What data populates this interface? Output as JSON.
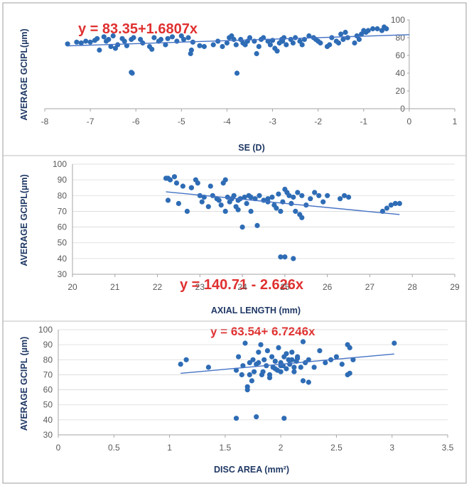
{
  "colors": {
    "points": "#2e6cb5",
    "trendline": "#4472c4",
    "equation": "#e03030",
    "axis_title": "#1f3864",
    "ticks": "#595959"
  },
  "chart_data": [
    {
      "type": "scatter",
      "xlabel": "SE (D)",
      "ylabel": "AVERAGE GCIPL(µm)",
      "equation": "y = 83.35+1.6807x",
      "trendline": {
        "intercept": 83.35,
        "slope": 1.6807,
        "x_range": [
          -7.5,
          0
        ]
      },
      "xlim": [
        -8,
        1
      ],
      "ylim": [
        0,
        100
      ],
      "xticks": [
        -8,
        -7,
        -6,
        -5,
        -4,
        -3,
        -2,
        -1,
        0,
        1
      ],
      "yticks": [
        0,
        20,
        40,
        60,
        80,
        100
      ],
      "y_axis_position": "right at x = 0",
      "x": [
        -7.5,
        -7.3,
        -7.2,
        -7.1,
        -7.0,
        -6.9,
        -6.85,
        -6.8,
        -6.7,
        -6.65,
        -6.6,
        -6.55,
        -6.5,
        -6.45,
        -6.4,
        -6.3,
        -6.25,
        -6.2,
        -6.1,
        -6.05,
        -6.1,
        -6.08,
        -5.9,
        -5.85,
        -5.7,
        -5.65,
        -5.6,
        -5.5,
        -5.45,
        -5.35,
        -5.3,
        -5.2,
        -5.1,
        -5.0,
        -4.95,
        -4.85,
        -4.8,
        -4.78,
        -4.75,
        -4.6,
        -4.5,
        -4.3,
        -4.2,
        -4.1,
        -4.0,
        -3.95,
        -3.9,
        -3.85,
        -3.8,
        -3.78,
        -3.7,
        -3.65,
        -3.6,
        -3.55,
        -3.5,
        -3.4,
        -3.35,
        -3.3,
        -3.25,
        -3.2,
        -3.1,
        -3.05,
        -3.0,
        -2.95,
        -2.9,
        -2.85,
        -2.8,
        -2.78,
        -2.75,
        -2.7,
        -2.6,
        -2.55,
        -2.5,
        -2.4,
        -2.35,
        -2.3,
        -2.2,
        -2.1,
        -2.05,
        -2.0,
        -1.95,
        -1.8,
        -1.75,
        -1.7,
        -1.6,
        -1.55,
        -1.5,
        -1.45,
        -1.4,
        -1.35,
        -1.2,
        -1.15,
        -1.1,
        -1.05,
        -1.0,
        -0.95,
        -0.9,
        -0.8,
        -0.7,
        -0.6,
        -0.55,
        -0.5
      ],
      "y": [
        73,
        75,
        74,
        76,
        75,
        77,
        79,
        66,
        81,
        76,
        78,
        70,
        82,
        68,
        72,
        79,
        76,
        71,
        78,
        80,
        41,
        40,
        78,
        74,
        70,
        67,
        80,
        76,
        78,
        72,
        79,
        81,
        76,
        82,
        78,
        80,
        62,
        66,
        75,
        71,
        70,
        72,
        76,
        70,
        74,
        80,
        82,
        78,
        72,
        40,
        78,
        74,
        72,
        76,
        80,
        76,
        62,
        70,
        78,
        80,
        76,
        72,
        77,
        68,
        65,
        74,
        78,
        76,
        80,
        72,
        78,
        74,
        80,
        76,
        72,
        78,
        82,
        80,
        78,
        76,
        74,
        70,
        72,
        80,
        76,
        74,
        84,
        78,
        86,
        80,
        74,
        82,
        78,
        84,
        88,
        86,
        88,
        90,
        90,
        88,
        92,
        90
      ]
    },
    {
      "type": "scatter",
      "xlabel": "AXIAL LENGTH (mm)",
      "ylabel": "AVERAGE GCIPL(µm)",
      "equation": "y = 140.71 - 2.626x",
      "trendline": {
        "intercept": 140.71,
        "slope": -2.626,
        "x_range": [
          22.2,
          27.7
        ]
      },
      "xlim": [
        20,
        29
      ],
      "ylim": [
        30,
        100
      ],
      "xticks": [
        20,
        21,
        22,
        23,
        24,
        25,
        26,
        27,
        28,
        29
      ],
      "yticks": [
        30,
        40,
        50,
        60,
        70,
        80,
        90,
        100
      ],
      "x": [
        22.2,
        22.25,
        22.3,
        22.4,
        22.45,
        22.5,
        22.6,
        22.7,
        22.8,
        22.9,
        22.95,
        23.0,
        23.05,
        23.1,
        23.2,
        23.25,
        23.3,
        23.4,
        23.45,
        23.5,
        23.55,
        23.6,
        23.65,
        23.7,
        23.75,
        23.8,
        23.85,
        23.9,
        23.95,
        24.0,
        24.05,
        24.1,
        24.15,
        24.2,
        24.3,
        24.35,
        24.4,
        24.5,
        24.6,
        24.7,
        24.75,
        24.8,
        24.85,
        24.9,
        24.95,
        25.0,
        25.05,
        25.1,
        25.15,
        25.2,
        25.25,
        25.3,
        25.35,
        25.4,
        25.5,
        25.6,
        25.7,
        25.8,
        25.9,
        26.0,
        26.3,
        26.4,
        26.5,
        27.3,
        27.4,
        27.5,
        27.6,
        27.7,
        22.25,
        22.8,
        23.6,
        23.9,
        24.2,
        24.6,
        24.9,
        25.0,
        25.2,
        25.4
      ],
      "y": [
        91,
        77,
        90,
        92,
        88,
        75,
        86,
        70,
        85,
        90,
        88,
        80,
        76,
        79,
        73,
        86,
        80,
        78,
        77,
        74,
        88,
        70,
        79,
        76,
        78,
        80,
        73,
        71,
        78,
        60,
        79,
        75,
        80,
        70,
        78,
        61,
        80,
        77,
        76,
        79,
        74,
        72,
        81,
        70,
        76,
        84,
        82,
        80,
        75,
        79,
        70,
        82,
        68,
        66,
        74,
        78,
        82,
        80,
        76,
        80,
        78,
        80,
        79,
        70,
        72,
        74,
        75,
        75,
        91,
        85,
        90,
        77,
        79,
        78,
        41,
        41,
        40,
        80
      ],
      "x_extra_note": ""
    },
    {
      "type": "scatter",
      "xlabel": "DISC AREA (mm²)",
      "ylabel": "AVERAGE GCIPL (µm)",
      "equation": "y = 63.54+ 6.7246x",
      "trendline": {
        "intercept": 63.54,
        "slope": 6.7246,
        "x_range": [
          1.1,
          3.02
        ]
      },
      "xlim": [
        0,
        3.5
      ],
      "ylim": [
        30,
        100
      ],
      "xticks": [
        0,
        0.5,
        1,
        1.5,
        2,
        2.5,
        3,
        3.5
      ],
      "yticks": [
        30,
        40,
        50,
        60,
        70,
        80,
        90,
        100
      ],
      "x": [
        1.1,
        1.15,
        1.35,
        1.6,
        1.62,
        1.65,
        1.68,
        1.7,
        1.72,
        1.74,
        1.75,
        1.78,
        1.8,
        1.82,
        1.84,
        1.85,
        1.87,
        1.88,
        1.9,
        1.92,
        1.93,
        1.95,
        1.97,
        1.98,
        2.0,
        2.02,
        2.03,
        2.05,
        2.07,
        2.08,
        2.1,
        2.12,
        2.14,
        2.15,
        2.18,
        2.2,
        2.22,
        2.25,
        2.3,
        2.35,
        2.4,
        2.45,
        2.5,
        2.55,
        2.6,
        2.62,
        2.65,
        3.02,
        1.6,
        1.78,
        2.03,
        1.7,
        1.72,
        1.76,
        1.8,
        1.9,
        1.95,
        2.0,
        2.05,
        2.1,
        2.15,
        2.2,
        1.66,
        1.83,
        2.0,
        2.12,
        2.25,
        2.62,
        2.6
      ],
      "y": [
        77,
        80,
        75,
        73,
        82,
        70,
        91,
        62,
        78,
        66,
        80,
        77,
        85,
        90,
        72,
        80,
        76,
        86,
        70,
        82,
        75,
        79,
        73,
        88,
        78,
        76,
        82,
        74,
        80,
        77,
        85,
        72,
        79,
        81,
        75,
        92,
        78,
        80,
        75,
        86,
        78,
        80,
        82,
        77,
        90,
        88,
        80,
        91,
        41,
        42,
        41,
        60,
        70,
        72,
        78,
        68,
        74,
        76,
        84,
        80,
        82,
        66,
        76,
        70,
        72,
        75,
        65,
        71,
        70
      ]
    }
  ]
}
